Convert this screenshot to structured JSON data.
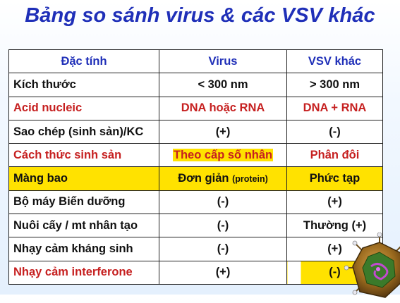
{
  "title": "Bảng so sánh virus & các VSV khác",
  "table": {
    "header": [
      "Đặc tính",
      "Virus",
      "VSV khác"
    ],
    "rows": [
      {
        "trait": "Kích thước",
        "virus": "< 300 nm",
        "virus_note": "",
        "other": "> 300 nm"
      },
      {
        "trait": "Acid nucleic",
        "virus": "DNA hoặc RNA",
        "virus_note": "",
        "other": "DNA + RNA"
      },
      {
        "trait": "Sao chép (sinh sản)/KC",
        "virus": "(+)",
        "virus_note": "",
        "other": "(-)"
      },
      {
        "trait": "Cách thức sinh sản",
        "virus": "Theo cấp số nhân",
        "virus_note": "",
        "other": "Phân đôi"
      },
      {
        "trait": "Màng bao",
        "virus": "Đơn giản",
        "virus_note": "(protein)",
        "other": "Phức tạp"
      },
      {
        "trait": "Bộ máy Biến dưỡng",
        "virus": "(-)",
        "virus_note": "",
        "other": "(+)"
      },
      {
        "trait": "Nuôi cấy / mt nhân tạo",
        "virus": "(-)",
        "virus_note": "",
        "other": "Thường (+)"
      },
      {
        "trait": "Nhạy cảm kháng sinh",
        "virus": "(-)",
        "virus_note": "",
        "other": "(+)"
      },
      {
        "trait": "Nhạy cảm interferone",
        "virus": "(+)",
        "virus_note": "",
        "other": "(-)"
      }
    ]
  },
  "colors": {
    "title": "#1f2fb8",
    "header_text": "#1f2fb8",
    "red_text": "#c62020",
    "highlight": "#ffe200"
  },
  "decoration": {
    "icon": "virus-particle-icon"
  }
}
